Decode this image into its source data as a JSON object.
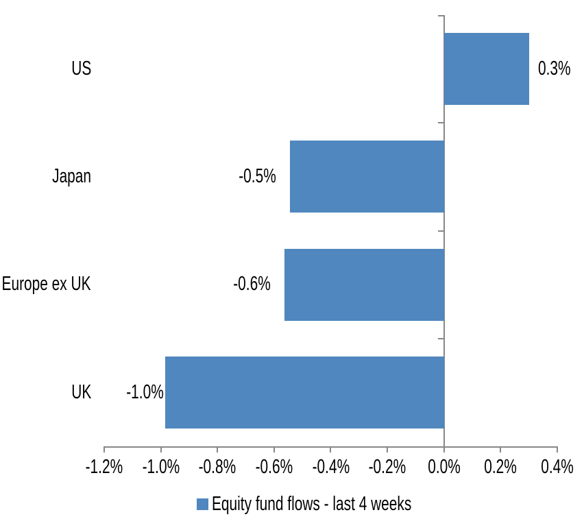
{
  "chart_data": {
    "type": "bar",
    "orientation": "horizontal",
    "title": "",
    "categories": [
      "US",
      "Japan",
      "Europe ex UK",
      "UK"
    ],
    "values": [
      0.3,
      -0.5,
      -0.6,
      -1.0
    ],
    "values_precise": [
      0.301,
      -0.544,
      -0.563,
      -0.984
    ],
    "data_labels": [
      "0.3%",
      "-0.5%",
      "-0.6%",
      "-1.0%"
    ],
    "x_axis": {
      "min": -1.2,
      "max": 0.4,
      "tick_values": [
        -1.2,
        -1.0,
        -0.8,
        -0.6,
        -0.4,
        -0.2,
        0.0,
        0.2,
        0.4
      ],
      "tick_labels": [
        "-1.2%",
        "-1.0%",
        "-0.8%",
        "-0.6%",
        "-0.4%",
        "-0.2%",
        "0.0%",
        "0.2%",
        "0.4%"
      ]
    },
    "legend": {
      "label": "Equity fund flows - last 4 weeks",
      "position": "bottom"
    },
    "grid": false,
    "colors": {
      "bar": "#4f87be",
      "axis": "#878787",
      "text": "#000000",
      "background": "#ffffff"
    }
  }
}
